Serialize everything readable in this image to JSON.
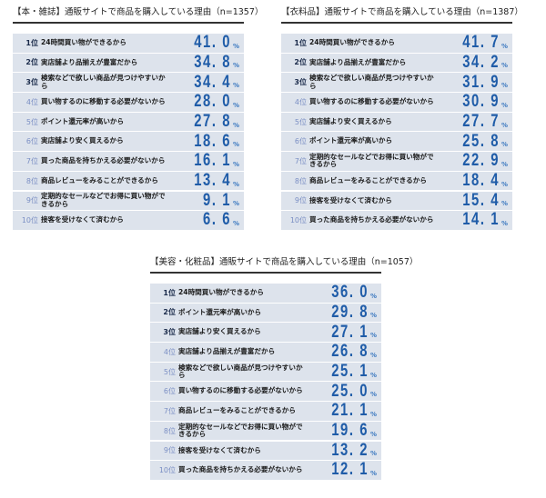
{
  "chart_data": [
    {
      "type": "table",
      "title": "【本・雑誌】通販サイトで商品を購入している理由（n=1357）",
      "categories": [
        "1位",
        "2位",
        "3位",
        "4位",
        "5位",
        "6位",
        "7位",
        "8位",
        "9位",
        "10位"
      ],
      "rows": [
        {
          "rank": "1位",
          "reason": "24時間買い物ができるから",
          "value": "41. 0",
          "unit": "%"
        },
        {
          "rank": "2位",
          "reason": "実店舗より品揃えが豊富だから",
          "value": "34. 8",
          "unit": "%"
        },
        {
          "rank": "3位",
          "reason": "検索などで欲しい商品が見つけやすいから",
          "value": "34. 4",
          "unit": "%"
        },
        {
          "rank": "4位",
          "reason": "買い物するのに移動する必要がないから",
          "value": "28. 0",
          "unit": "%"
        },
        {
          "rank": "5位",
          "reason": "ポイント還元率が高いから",
          "value": "27. 8",
          "unit": "%"
        },
        {
          "rank": "6位",
          "reason": "実店舗より安く買えるから",
          "value": "18. 6",
          "unit": "%"
        },
        {
          "rank": "7位",
          "reason": "買った商品を持ちかえる必要がないから",
          "value": "16. 1",
          "unit": "%"
        },
        {
          "rank": "8位",
          "reason": "商品レビューをみることができるから",
          "value": "13. 4",
          "unit": "%"
        },
        {
          "rank": "9位",
          "reason": "定期的なセールなどでお得に買い物ができるから",
          "value": "9. 1",
          "unit": "%"
        },
        {
          "rank": "10位",
          "reason": "接客を受けなくて済むから",
          "value": "6. 6",
          "unit": "%"
        }
      ],
      "values": [
        41.0,
        34.8,
        34.4,
        28.0,
        27.8,
        18.6,
        16.1,
        13.4,
        9.1,
        6.6
      ]
    },
    {
      "type": "table",
      "title": "【衣料品】通販サイトで商品を購入している理由（n=1387）",
      "categories": [
        "1位",
        "2位",
        "3位",
        "4位",
        "5位",
        "6位",
        "7位",
        "8位",
        "9位",
        "10位"
      ],
      "rows": [
        {
          "rank": "1位",
          "reason": "24時間買い物ができるから",
          "value": "41. 7",
          "unit": "%"
        },
        {
          "rank": "2位",
          "reason": "実店舗より品揃えが豊富だから",
          "value": "34. 2",
          "unit": "%"
        },
        {
          "rank": "3位",
          "reason": "検索などで欲しい商品が見つけやすいから",
          "value": "31. 9",
          "unit": "%"
        },
        {
          "rank": "4位",
          "reason": "買い物するのに移動する必要がないから",
          "value": "30. 9",
          "unit": "%"
        },
        {
          "rank": "5位",
          "reason": "実店舗より安く買えるから",
          "value": "27. 7",
          "unit": "%"
        },
        {
          "rank": "6位",
          "reason": "ポイント還元率が高いから",
          "value": "25. 8",
          "unit": "%"
        },
        {
          "rank": "7位",
          "reason": "定期的なセールなどでお得に買い物ができるから",
          "value": "22. 9",
          "unit": "%"
        },
        {
          "rank": "8位",
          "reason": "商品レビューをみることができるから",
          "value": "18. 4",
          "unit": "%"
        },
        {
          "rank": "9位",
          "reason": "接客を受けなくて済むから",
          "value": "15. 4",
          "unit": "%"
        },
        {
          "rank": "10位",
          "reason": "買った商品を持ちかえる必要がないから",
          "value": "14. 1",
          "unit": "%"
        }
      ],
      "values": [
        41.7,
        34.2,
        31.9,
        30.9,
        27.7,
        25.8,
        22.9,
        18.4,
        15.4,
        14.1
      ]
    },
    {
      "type": "table",
      "title": "【美容・化粧品】通販サイトで商品を購入している理由（n=1057）",
      "categories": [
        "1位",
        "2位",
        "3位",
        "4位",
        "5位",
        "6位",
        "7位",
        "8位",
        "9位",
        "10位"
      ],
      "rows": [
        {
          "rank": "1位",
          "reason": "24時間買い物ができるから",
          "value": "36. 0",
          "unit": "%"
        },
        {
          "rank": "2位",
          "reason": "ポイント還元率が高いから",
          "value": "29. 8",
          "unit": "%"
        },
        {
          "rank": "3位",
          "reason": "実店舗より安く買えるから",
          "value": "27. 1",
          "unit": "%"
        },
        {
          "rank": "4位",
          "reason": "実店舗より品揃えが豊富だから",
          "value": "26. 8",
          "unit": "%"
        },
        {
          "rank": "5位",
          "reason": "検索などで欲しい商品が見つけやすいから",
          "value": "25. 1",
          "unit": "%"
        },
        {
          "rank": "6位",
          "reason": "買い物するのに移動する必要がないから",
          "value": "25. 0",
          "unit": "%"
        },
        {
          "rank": "7位",
          "reason": "商品レビューをみることができるから",
          "value": "21. 1",
          "unit": "%"
        },
        {
          "rank": "8位",
          "reason": "定期的なセールなどでお得に買い物ができるから",
          "value": "19. 6",
          "unit": "%"
        },
        {
          "rank": "9位",
          "reason": "接客を受けなくて済むから",
          "value": "13. 2",
          "unit": "%"
        },
        {
          "rank": "10位",
          "reason": "買った商品を持ちかえる必要がないから",
          "value": "12. 1",
          "unit": "%"
        }
      ],
      "values": [
        36.0,
        29.8,
        27.1,
        26.8,
        25.1,
        25.0,
        21.1,
        19.6,
        13.2,
        12.1
      ]
    }
  ],
  "colors": {
    "row_bg": "#dde3ec",
    "value": "#1f5ca8",
    "rank_top": "#1a2a4a",
    "rank_rest": "#7b8fc4",
    "rule": "#333333"
  }
}
